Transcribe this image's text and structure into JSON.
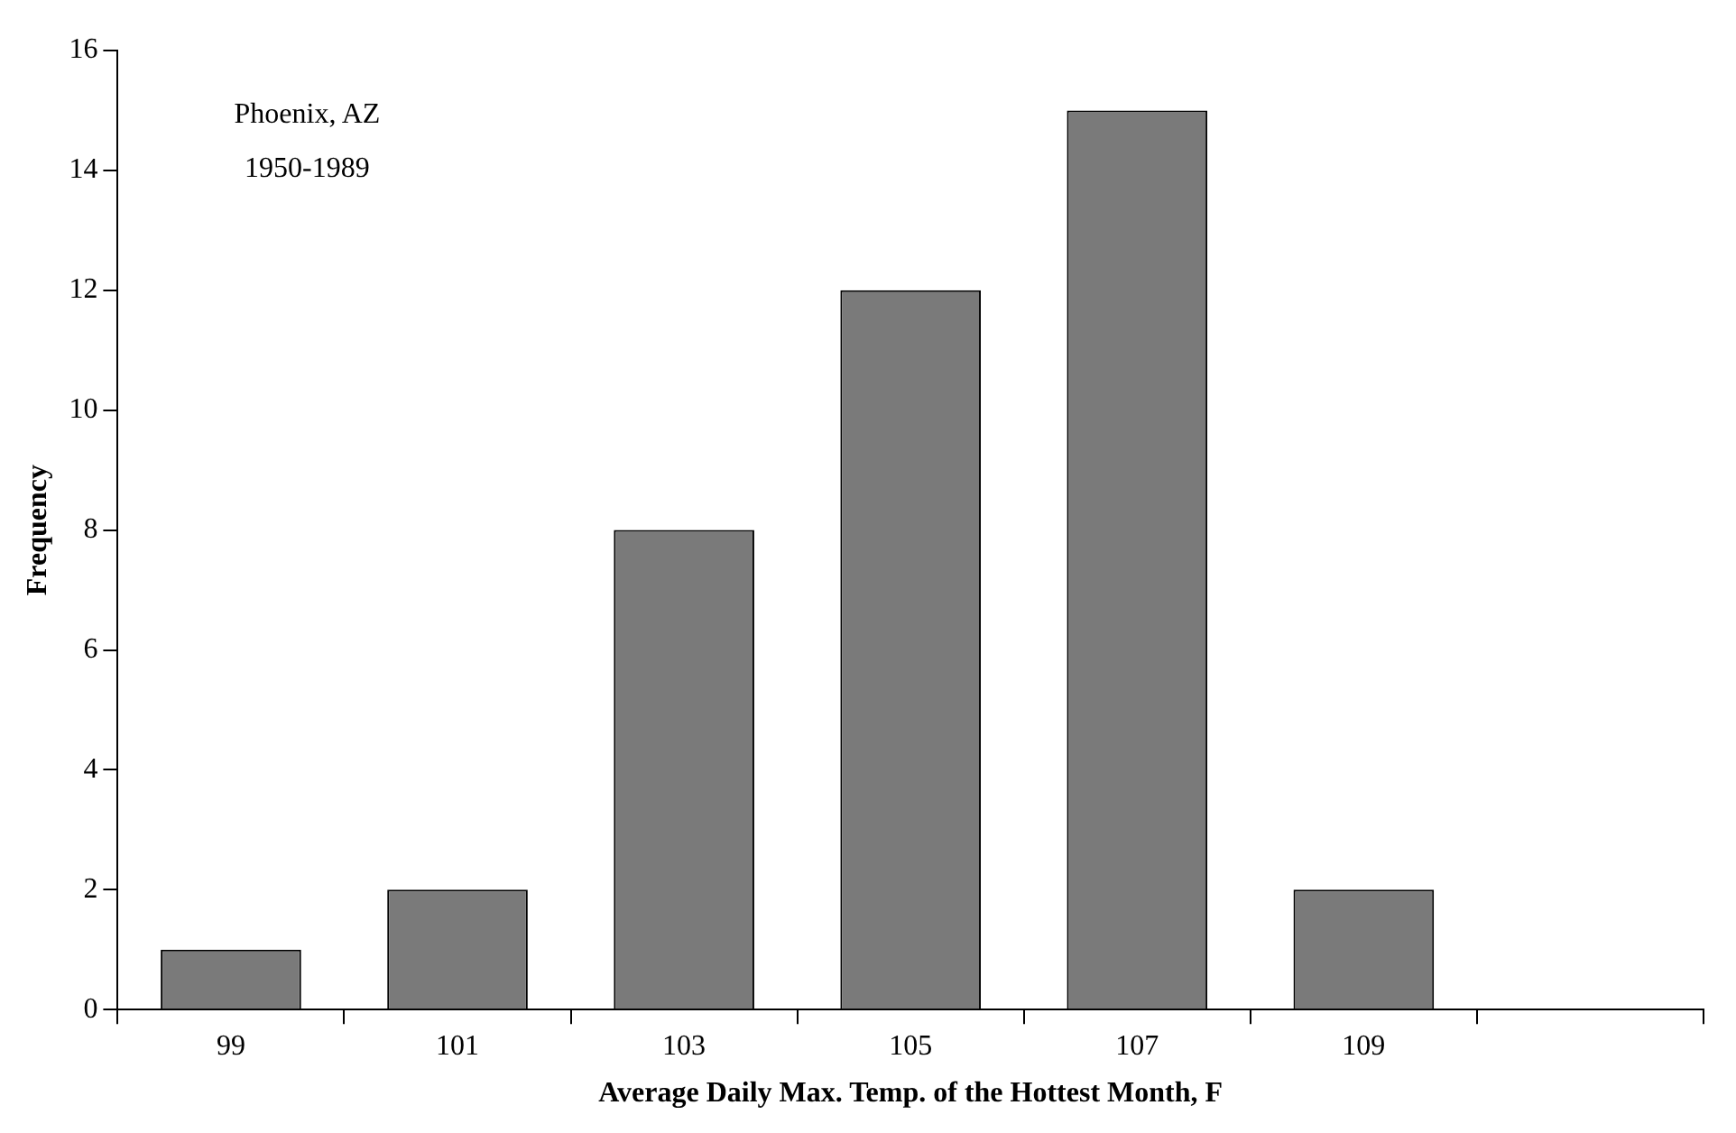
{
  "chart_data": {
    "type": "bar",
    "xlabel": "Average Daily Max. Temp. of the Hottest Month, F",
    "ylabel": "Frequency",
    "annotations": [
      "Phoenix, AZ",
      "1950-1989"
    ],
    "categories": [
      "99",
      "101",
      "103",
      "105",
      "107",
      "109",
      null
    ],
    "values": [
      1,
      2,
      8,
      12,
      15,
      2,
      null
    ],
    "color": "#7a7a7a",
    "ylim": [
      0,
      16
    ],
    "yticks": [
      0,
      2,
      4,
      6,
      8,
      10,
      12,
      14,
      16
    ],
    "grid": false,
    "legend": false
  }
}
